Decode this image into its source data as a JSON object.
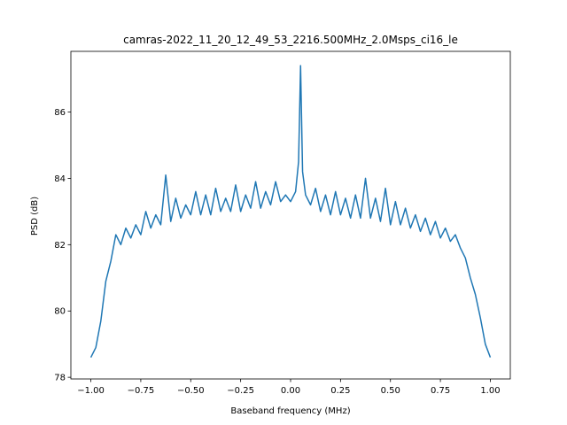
{
  "chart_data": {
    "type": "line",
    "title": "camras-2022_11_20_12_49_53_2216.500MHz_2.0Msps_ci16_le",
    "x_label": "Baseband frequency (MHz)",
    "y_label": "PSD (dB)",
    "x": [
      -1.0,
      -0.975,
      -0.95,
      -0.925,
      -0.9,
      -0.875,
      -0.85,
      -0.825,
      -0.8,
      -0.775,
      -0.75,
      -0.725,
      -0.7,
      -0.675,
      -0.65,
      -0.625,
      -0.6,
      -0.575,
      -0.55,
      -0.525,
      -0.5,
      -0.475,
      -0.45,
      -0.425,
      -0.4,
      -0.375,
      -0.35,
      -0.325,
      -0.3,
      -0.275,
      -0.25,
      -0.225,
      -0.2,
      -0.175,
      -0.15,
      -0.125,
      -0.1,
      -0.075,
      -0.05,
      -0.025,
      0.0,
      0.025,
      0.04,
      0.05,
      0.06,
      0.075,
      0.1,
      0.125,
      0.15,
      0.175,
      0.2,
      0.225,
      0.25,
      0.275,
      0.3,
      0.325,
      0.35,
      0.375,
      0.4,
      0.425,
      0.45,
      0.475,
      0.5,
      0.525,
      0.55,
      0.575,
      0.6,
      0.625,
      0.65,
      0.675,
      0.7,
      0.725,
      0.75,
      0.775,
      0.8,
      0.825,
      0.85,
      0.875,
      0.9,
      0.925,
      0.95,
      0.975,
      1.0
    ],
    "series": [
      {
        "color": "#1f77b4",
        "values": [
          78.6,
          78.9,
          79.7,
          80.9,
          81.5,
          82.3,
          82.0,
          82.5,
          82.2,
          82.6,
          82.3,
          83.0,
          82.5,
          82.9,
          82.6,
          84.1,
          82.7,
          83.4,
          82.8,
          83.2,
          82.9,
          83.6,
          82.9,
          83.5,
          82.9,
          83.7,
          83.0,
          83.4,
          83.0,
          83.8,
          83.0,
          83.5,
          83.1,
          83.9,
          83.1,
          83.6,
          83.2,
          83.9,
          83.3,
          83.5,
          83.3,
          83.6,
          84.5,
          87.4,
          84.2,
          83.5,
          83.2,
          83.7,
          83.0,
          83.5,
          82.9,
          83.6,
          82.9,
          83.4,
          82.8,
          83.5,
          82.8,
          84.0,
          82.8,
          83.4,
          82.7,
          83.7,
          82.6,
          83.3,
          82.6,
          83.1,
          82.5,
          82.9,
          82.4,
          82.8,
          82.3,
          82.7,
          82.2,
          82.5,
          82.1,
          82.3,
          81.9,
          81.6,
          81.0,
          80.5,
          79.8,
          79.0,
          78.6
        ]
      }
    ],
    "xlim": [
      -1.1,
      1.1
    ],
    "ylim": [
      77.95,
      87.83
    ],
    "xticks": [
      {
        "value": -1,
        "label": "−1.00"
      },
      {
        "value": -0.75,
        "label": "−0.75"
      },
      {
        "value": -0.5,
        "label": "−0.50"
      },
      {
        "value": -0.25,
        "label": "−0.25"
      },
      {
        "value": 0,
        "label": "0.00"
      },
      {
        "value": 0.25,
        "label": "0.25"
      },
      {
        "value": 0.5,
        "label": "0.50"
      },
      {
        "value": 0.75,
        "label": "0.75"
      },
      {
        "value": 1,
        "label": "1.00"
      }
    ],
    "yticks": [
      78,
      80,
      82,
      84,
      86
    ],
    "grid": false
  }
}
